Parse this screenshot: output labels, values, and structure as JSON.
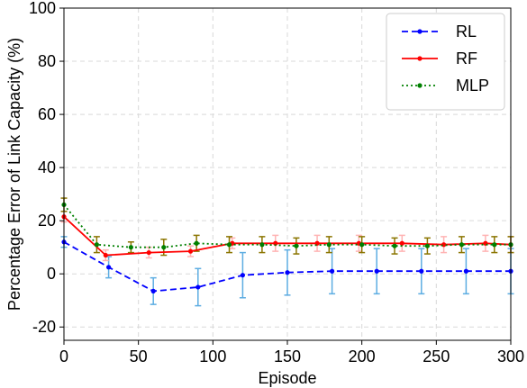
{
  "chart_data": {
    "type": "line",
    "title": "",
    "xlabel": "Episode",
    "ylabel": "Percentage Error of Link Capacity (%)",
    "xlim": [
      0,
      300
    ],
    "ylim": [
      -25,
      100
    ],
    "xticks": [
      0,
      50,
      100,
      150,
      200,
      250,
      300
    ],
    "yticks": [
      -20,
      0,
      20,
      40,
      60,
      80,
      100
    ],
    "grid": true,
    "legend_position": "top-right",
    "series": [
      {
        "name": "RL",
        "color": "#0000ff",
        "errorbar_color": "#5dade2",
        "line_style": "dashed",
        "x": [
          0,
          30,
          60,
          90,
          120,
          150,
          180,
          210,
          240,
          270,
          300
        ],
        "y": [
          12,
          2.5,
          -6.5,
          -5,
          -0.5,
          0.5,
          1,
          1,
          1,
          1,
          1
        ],
        "err": [
          2,
          4,
          5,
          7,
          8.5,
          8.5,
          8.5,
          8.5,
          8.5,
          8.5,
          8.5
        ]
      },
      {
        "name": "RF",
        "color": "#ff0000",
        "errorbar_color": "#ffb3b3",
        "line_style": "solid",
        "x": [
          0,
          28,
          57,
          85,
          113,
          142,
          170,
          198,
          227,
          255,
          283,
          300
        ],
        "y": [
          21.5,
          7,
          8,
          8.5,
          11.5,
          11.5,
          11.5,
          11.5,
          11.5,
          11,
          11.5,
          11
        ],
        "err": [
          2,
          2,
          2,
          2,
          2,
          3,
          3,
          3,
          3,
          3,
          3,
          3
        ]
      },
      {
        "name": "MLP",
        "color": "#008000",
        "errorbar_color": "#8b7500",
        "line_style": "dotted",
        "x": [
          0,
          22,
          45,
          67,
          89,
          111,
          133,
          156,
          178,
          200,
          222,
          244,
          267,
          289,
          300
        ],
        "y": [
          26,
          11,
          10,
          10,
          11.5,
          11,
          11,
          10.5,
          11,
          11,
          10.5,
          10.5,
          11,
          11,
          11
        ],
        "err": [
          2.5,
          3,
          2,
          3,
          3,
          3,
          3,
          3,
          3,
          3,
          3,
          3,
          3,
          3,
          3
        ]
      }
    ]
  }
}
